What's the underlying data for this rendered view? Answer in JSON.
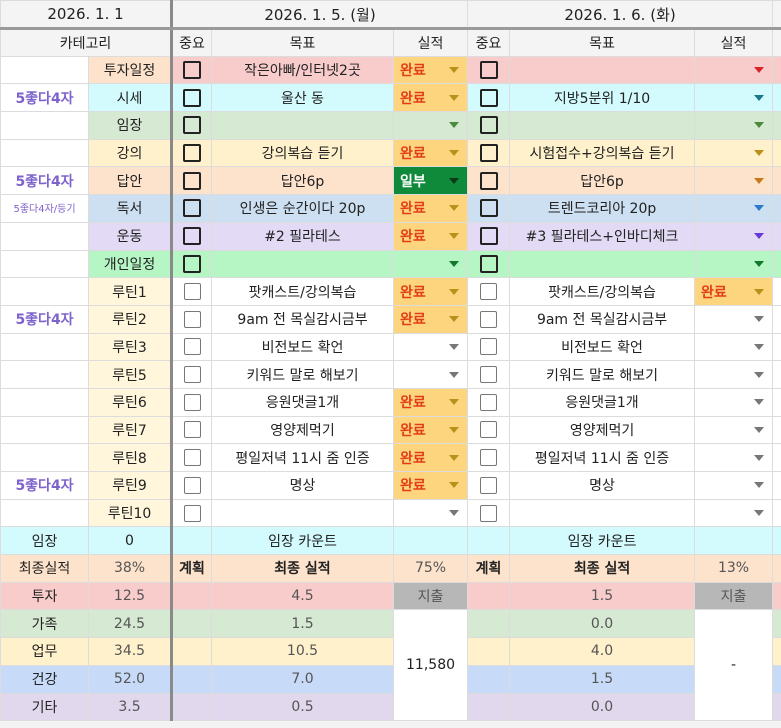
{
  "header": {
    "dates": [
      "2026. 1. 1",
      "2026. 1. 5. (월)",
      "2026. 1. 6. (화)"
    ],
    "col_category": "카테고리",
    "col_importance": "중요",
    "col_goal": "목표",
    "col_result": "실적"
  },
  "colors": {
    "done_bg": "#fdd57f",
    "done_text": "#e23d17",
    "partial_bg": "#0f8a3a",
    "partial_text": "#ffffff",
    "left_label": "#7f63cc",
    "expense_bg": "#b7b7b7"
  },
  "rows": [
    {
      "left": "",
      "category": "투자일정",
      "cat_bg": "#fde3cc",
      "row_bg": "#f9cccc",
      "arrow": "#d8232a",
      "bold_cb": true,
      "days": [
        {
          "goal": "작은아빠/인터넷2곳",
          "status": "완료"
        },
        {
          "goal": "",
          "status": ""
        }
      ]
    },
    {
      "left": "5좋다4자",
      "category": "시세",
      "cat_bg": "#d3fbfd",
      "row_bg": "#d3fbfd",
      "arrow": "#1a7a8a",
      "bold_cb": true,
      "days": [
        {
          "goal": "울산 동",
          "status": "완료"
        },
        {
          "goal": "지방5분위 1/10",
          "status": ""
        }
      ]
    },
    {
      "left": "",
      "category": "임장",
      "cat_bg": "#d6e9d2",
      "row_bg": "#d6e9d2",
      "arrow": "#4a8a3a",
      "bold_cb": true,
      "days": [
        {
          "goal": "",
          "status": ""
        },
        {
          "goal": "",
          "status": ""
        }
      ]
    },
    {
      "left": "",
      "category": "강의",
      "cat_bg": "#fff1cb",
      "row_bg": "#fff1cb",
      "arrow": "#b8901a",
      "bold_cb": true,
      "days": [
        {
          "goal": "강의복습 듣기",
          "status": "완료"
        },
        {
          "goal": "시험접수+강의복습 듣기",
          "status": ""
        }
      ]
    },
    {
      "left": "5좋다4자",
      "category": "답안",
      "cat_bg": "#fde3cc",
      "row_bg": "#fde3cc",
      "arrow": "#c87a1a",
      "bold_cb": true,
      "days": [
        {
          "goal": "답안6p",
          "status": "일부"
        },
        {
          "goal": "답안6p",
          "status": ""
        }
      ]
    },
    {
      "left": "5좋다4자/등기",
      "left_small": true,
      "category": "독서",
      "cat_bg": "#cde0f2",
      "row_bg": "#cde0f2",
      "arrow": "#2a7ac8",
      "bold_cb": true,
      "days": [
        {
          "goal": "인생은 순간이다 20p",
          "status": "완료"
        },
        {
          "goal": "트렌드코리아 20p",
          "status": ""
        }
      ]
    },
    {
      "left": "",
      "category": "운동",
      "cat_bg": "#e3dbf5",
      "row_bg": "#e3dbf5",
      "arrow": "#6a3ad8",
      "bold_cb": true,
      "days": [
        {
          "goal": "#2 필라테스",
          "status": "완료"
        },
        {
          "goal": "#3 필라테스+인바디체크",
          "status": ""
        }
      ]
    },
    {
      "left": "",
      "category": "개인일정",
      "cat_bg": "#b6f6c5",
      "row_bg": "#b6f6c5",
      "arrow": "#0f7a2a",
      "bold_cb": true,
      "days": [
        {
          "goal": "",
          "status": ""
        },
        {
          "goal": "",
          "status": ""
        }
      ]
    },
    {
      "left": "",
      "category": "루틴1",
      "cat_bg": "#fff6dc",
      "row_bg": "#ffffff",
      "arrow": "#777777",
      "days": [
        {
          "goal": "팟캐스트/강의복습",
          "status": "완료"
        },
        {
          "goal": "팟캐스트/강의복습",
          "status": "완료"
        }
      ]
    },
    {
      "left": "5좋다4자",
      "category": "루틴2",
      "cat_bg": "#fff6dc",
      "row_bg": "#ffffff",
      "arrow": "#777777",
      "days": [
        {
          "goal": "9am 전 목실감시금부",
          "status": "완료"
        },
        {
          "goal": "9am 전 목실감시금부",
          "status": ""
        }
      ]
    },
    {
      "left": "",
      "category": "루틴3",
      "cat_bg": "#fff6dc",
      "row_bg": "#ffffff",
      "arrow": "#777777",
      "days": [
        {
          "goal": "비전보드 확언",
          "status": ""
        },
        {
          "goal": "비전보드 확언",
          "status": ""
        }
      ]
    },
    {
      "left": "",
      "category": "루틴5",
      "cat_bg": "#fff6dc",
      "row_bg": "#ffffff",
      "arrow": "#777777",
      "days": [
        {
          "goal": "키워드 말로 해보기",
          "status": ""
        },
        {
          "goal": "키워드 말로 해보기",
          "status": ""
        }
      ]
    },
    {
      "left": "",
      "category": "루틴6",
      "cat_bg": "#fff6dc",
      "row_bg": "#ffffff",
      "arrow": "#777777",
      "days": [
        {
          "goal": "응원댓글1개",
          "status": "완료"
        },
        {
          "goal": "응원댓글1개",
          "status": ""
        }
      ]
    },
    {
      "left": "",
      "category": "루틴7",
      "cat_bg": "#fff6dc",
      "row_bg": "#ffffff",
      "arrow": "#777777",
      "days": [
        {
          "goal": "영양제먹기",
          "status": "완료"
        },
        {
          "goal": "영양제먹기",
          "status": ""
        }
      ]
    },
    {
      "left": "",
      "category": "루틴8",
      "cat_bg": "#fff6dc",
      "row_bg": "#ffffff",
      "arrow": "#777777",
      "days": [
        {
          "goal": "평일저녁 11시 줌 인증",
          "status": "완료"
        },
        {
          "goal": "평일저녁 11시 줌 인증",
          "status": ""
        }
      ]
    },
    {
      "left": "5좋다4자",
      "category": "루틴9",
      "cat_bg": "#fff6dc",
      "row_bg": "#ffffff",
      "arrow": "#777777",
      "days": [
        {
          "goal": "명상",
          "status": "완료"
        },
        {
          "goal": "명상",
          "status": ""
        }
      ]
    },
    {
      "left": "",
      "category": "루틴10",
      "cat_bg": "#fff6dc",
      "row_bg": "#ffffff",
      "arrow": "#777777",
      "days": [
        {
          "goal": "",
          "status": ""
        },
        {
          "goal": "",
          "status": ""
        }
      ]
    }
  ],
  "visit": {
    "label": "임장",
    "value": "0",
    "days": [
      "임장 카운트",
      "임장 카운트"
    ],
    "bg": "#d3fbfd"
  },
  "final": {
    "label": "최종실적",
    "value": "38%",
    "bg": "#fde3cc",
    "days": [
      {
        "plan": "계획",
        "label": "최종 실적",
        "pct": "75%"
      },
      {
        "plan": "계획",
        "label": "최종 실적",
        "pct": "13%"
      }
    ]
  },
  "expense_label": "지출",
  "expense_values": [
    "11,580",
    "-"
  ],
  "totals": [
    {
      "label": "투자",
      "value": "12.5",
      "bg": "#f9cccc",
      "days": [
        "4.5",
        "1.5"
      ]
    },
    {
      "label": "가족",
      "value": "24.5",
      "bg": "#d6e9d2",
      "days": [
        "1.5",
        "0.0"
      ]
    },
    {
      "label": "업무",
      "value": "34.5",
      "bg": "#fff1cb",
      "days": [
        "10.5",
        "4.0"
      ]
    },
    {
      "label": "건강",
      "value": "52.0",
      "bg": "#c7dbf8",
      "days": [
        "7.0",
        "1.5"
      ]
    },
    {
      "label": "기타",
      "value": "3.5",
      "bg": "#e1d8ee",
      "days": [
        "0.5",
        "0.0"
      ]
    }
  ]
}
